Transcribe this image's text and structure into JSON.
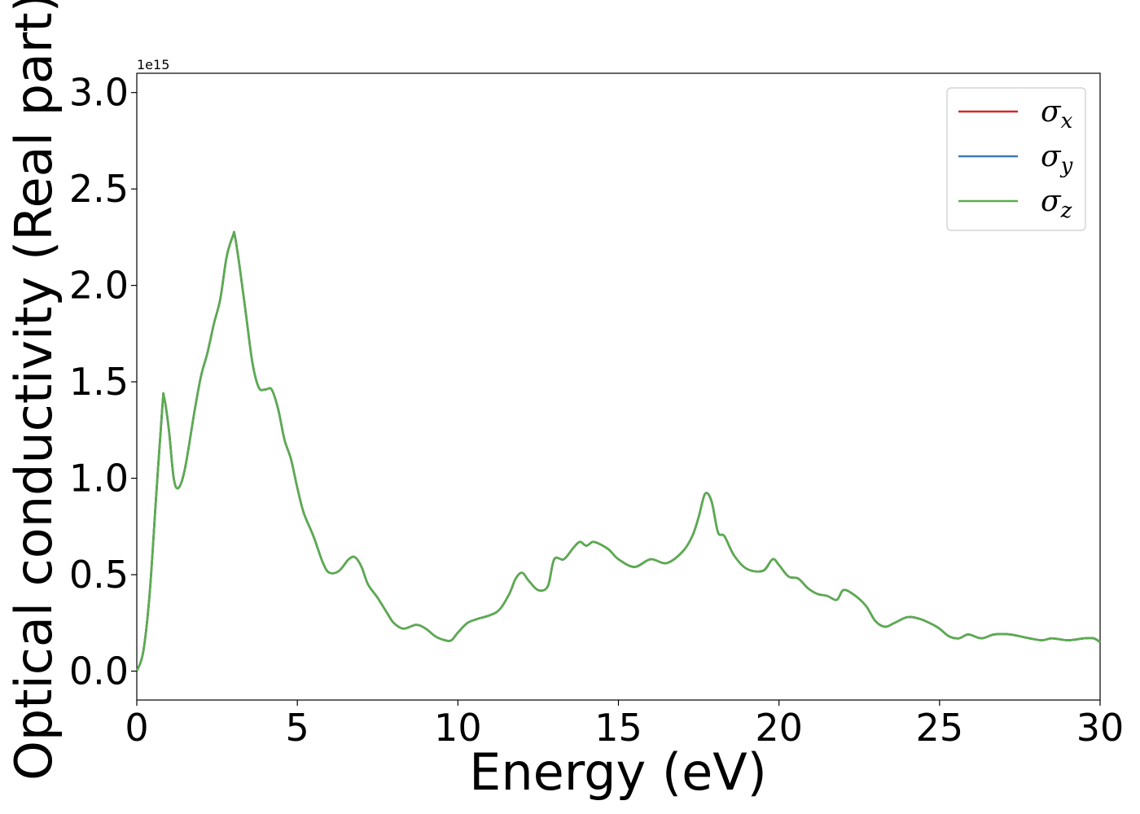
{
  "chart_data": {
    "type": "line",
    "title": "",
    "xlabel": "Energy (eV)",
    "ylabel": "Optical conductivity (Real part)",
    "y_offset_label": "1e15",
    "xlim": [
      0,
      30
    ],
    "ylim": [
      -0.15,
      3.1
    ],
    "xticks": [
      0,
      5,
      10,
      15,
      20,
      25,
      30
    ],
    "xtick_labels": [
      "0",
      "5",
      "10",
      "15",
      "20",
      "25",
      "30"
    ],
    "yticks": [
      0.0,
      0.5,
      1.0,
      1.5,
      2.0,
      2.5,
      3.0
    ],
    "ytick_labels": [
      "0.0",
      "0.5",
      "1.0",
      "1.5",
      "2.0",
      "2.5",
      "3.0"
    ],
    "grid": false,
    "legend_position": "top-right",
    "series": [
      {
        "name": "σ",
        "subscript": "x",
        "color": "#d62728"
      },
      {
        "name": "σ",
        "subscript": "y",
        "color": "#3a7ab5"
      },
      {
        "name": "σ",
        "subscript": "z",
        "color": "#5aad4e"
      }
    ],
    "x": [
      0,
      0.2,
      0.4,
      0.6,
      0.8,
      0.85,
      1.0,
      1.15,
      1.3,
      1.5,
      1.8,
      2.0,
      2.2,
      2.4,
      2.6,
      2.8,
      3.0,
      3.05,
      3.2,
      3.4,
      3.6,
      3.8,
      4.0,
      4.2,
      4.4,
      4.6,
      4.8,
      5.0,
      5.2,
      5.5,
      5.8,
      6.0,
      6.3,
      6.6,
      6.8,
      7.0,
      7.2,
      7.5,
      7.8,
      8.0,
      8.3,
      8.7,
      9.0,
      9.3,
      9.6,
      9.8,
      10.0,
      10.3,
      10.6,
      11.0,
      11.3,
      11.6,
      11.8,
      12.0,
      12.2,
      12.5,
      12.8,
      13.0,
      13.3,
      13.6,
      13.8,
      14.0,
      14.2,
      14.4,
      14.7,
      15.0,
      15.5,
      16.0,
      16.5,
      17.0,
      17.3,
      17.5,
      17.7,
      17.9,
      18.1,
      18.3,
      18.6,
      19.0,
      19.5,
      19.8,
      20.0,
      20.3,
      20.6,
      20.9,
      21.2,
      21.5,
      21.8,
      22.0,
      22.3,
      22.7,
      23.0,
      23.3,
      23.6,
      24.0,
      24.4,
      24.8,
      25.0,
      25.3,
      25.6,
      25.9,
      26.3,
      26.7,
      27.2,
      27.8,
      28.2,
      28.5,
      29.0,
      29.5,
      29.8,
      30.0
    ],
    "y": [
      0.0,
      0.1,
      0.4,
      0.9,
      1.38,
      1.42,
      1.25,
      1.0,
      0.95,
      1.05,
      1.35,
      1.53,
      1.65,
      1.8,
      1.93,
      2.15,
      2.26,
      2.26,
      2.1,
      1.85,
      1.6,
      1.47,
      1.46,
      1.46,
      1.36,
      1.2,
      1.1,
      0.95,
      0.82,
      0.7,
      0.56,
      0.51,
      0.52,
      0.58,
      0.59,
      0.54,
      0.45,
      0.38,
      0.3,
      0.25,
      0.22,
      0.24,
      0.22,
      0.18,
      0.16,
      0.16,
      0.2,
      0.25,
      0.27,
      0.29,
      0.32,
      0.4,
      0.48,
      0.51,
      0.47,
      0.42,
      0.44,
      0.58,
      0.58,
      0.64,
      0.67,
      0.65,
      0.67,
      0.66,
      0.63,
      0.58,
      0.54,
      0.58,
      0.56,
      0.62,
      0.7,
      0.8,
      0.92,
      0.88,
      0.72,
      0.7,
      0.6,
      0.53,
      0.52,
      0.58,
      0.55,
      0.49,
      0.48,
      0.43,
      0.4,
      0.39,
      0.37,
      0.42,
      0.4,
      0.34,
      0.26,
      0.23,
      0.25,
      0.28,
      0.27,
      0.24,
      0.22,
      0.18,
      0.17,
      0.19,
      0.17,
      0.19,
      0.19,
      0.17,
      0.16,
      0.17,
      0.16,
      0.17,
      0.17,
      0.15
    ]
  }
}
